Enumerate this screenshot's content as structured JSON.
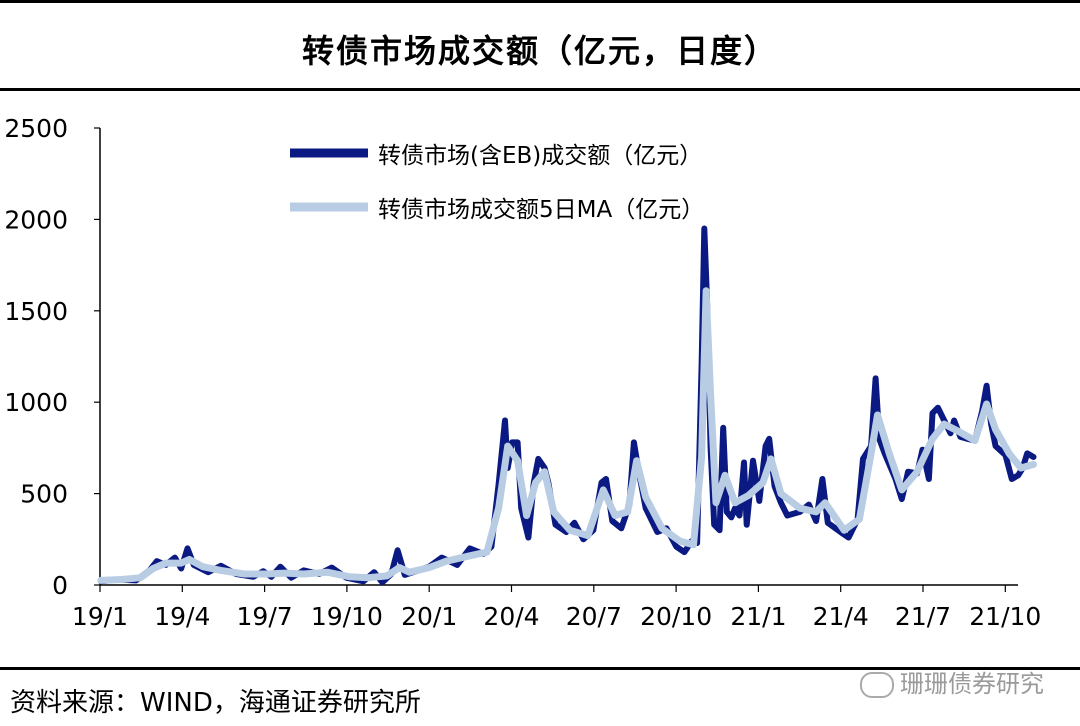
{
  "title": "转债市场成交额（亿元，日度）",
  "source": "资料来源：WIND，海通证券研究所",
  "watermark": "珊珊债券研究",
  "chart_data": {
    "type": "line",
    "title": "转债市场成交额（亿元，日度）",
    "ylim": [
      0,
      2500
    ],
    "yticks": [
      0,
      500,
      1000,
      1500,
      2000,
      2500
    ],
    "xticks": [
      "19/1",
      "19/4",
      "19/7",
      "19/10",
      "20/1",
      "20/4",
      "20/7",
      "20/10",
      "21/1",
      "21/4",
      "21/7",
      "21/10"
    ],
    "xlim": [
      "2019-01-01",
      "2021-11-15"
    ],
    "grid": false,
    "legend_position": "top-center",
    "series": [
      {
        "name": "转债市场(含EB)成交额（亿元）",
        "color": "#0b1a82",
        "points": [
          [
            "2019-01-02",
            20
          ],
          [
            "2019-01-20",
            30
          ],
          [
            "2019-02-10",
            25
          ],
          [
            "2019-02-25",
            80
          ],
          [
            "2019-03-05",
            130
          ],
          [
            "2019-03-15",
            110
          ],
          [
            "2019-03-25",
            150
          ],
          [
            "2019-04-01",
            90
          ],
          [
            "2019-04-08",
            200
          ],
          [
            "2019-04-15",
            110
          ],
          [
            "2019-05-01",
            70
          ],
          [
            "2019-05-15",
            105
          ],
          [
            "2019-06-01",
            60
          ],
          [
            "2019-06-20",
            45
          ],
          [
            "2019-07-01",
            75
          ],
          [
            "2019-07-10",
            45
          ],
          [
            "2019-07-20",
            100
          ],
          [
            "2019-08-01",
            40
          ],
          [
            "2019-08-15",
            80
          ],
          [
            "2019-09-01",
            60
          ],
          [
            "2019-09-15",
            95
          ],
          [
            "2019-10-01",
            40
          ],
          [
            "2019-10-20",
            20
          ],
          [
            "2019-11-01",
            70
          ],
          [
            "2019-11-10",
            15
          ],
          [
            "2019-11-20",
            60
          ],
          [
            "2019-11-27",
            190
          ],
          [
            "2019-12-05",
            55
          ],
          [
            "2019-12-20",
            80
          ],
          [
            "2020-01-01",
            100
          ],
          [
            "2020-01-15",
            150
          ],
          [
            "2020-02-01",
            110
          ],
          [
            "2020-02-15",
            200
          ],
          [
            "2020-03-01",
            170
          ],
          [
            "2020-03-10",
            210
          ],
          [
            "2020-03-18",
            550
          ],
          [
            "2020-03-25",
            900
          ],
          [
            "2020-03-28",
            640
          ],
          [
            "2020-04-02",
            780
          ],
          [
            "2020-04-08",
            780
          ],
          [
            "2020-04-12",
            420
          ],
          [
            "2020-04-20",
            260
          ],
          [
            "2020-04-26",
            560
          ],
          [
            "2020-05-01",
            690
          ],
          [
            "2020-05-08",
            640
          ],
          [
            "2020-05-12",
            560
          ],
          [
            "2020-05-20",
            330
          ],
          [
            "2020-06-01",
            290
          ],
          [
            "2020-06-10",
            340
          ],
          [
            "2020-06-20",
            250
          ],
          [
            "2020-07-01",
            300
          ],
          [
            "2020-07-10",
            560
          ],
          [
            "2020-07-15",
            580
          ],
          [
            "2020-07-22",
            350
          ],
          [
            "2020-08-01",
            310
          ],
          [
            "2020-08-10",
            440
          ],
          [
            "2020-08-15",
            780
          ],
          [
            "2020-08-20",
            630
          ],
          [
            "2020-08-28",
            420
          ],
          [
            "2020-09-10",
            290
          ],
          [
            "2020-09-20",
            310
          ],
          [
            "2020-10-01",
            210
          ],
          [
            "2020-10-10",
            180
          ],
          [
            "2020-10-18",
            240
          ],
          [
            "2020-10-24",
            230
          ],
          [
            "2020-10-29",
            1200
          ],
          [
            "2020-11-01",
            1950
          ],
          [
            "2020-11-04",
            1560
          ],
          [
            "2020-11-08",
            750
          ],
          [
            "2020-11-12",
            330
          ],
          [
            "2020-11-18",
            300
          ],
          [
            "2020-11-22",
            860
          ],
          [
            "2020-11-26",
            400
          ],
          [
            "2020-12-01",
            370
          ],
          [
            "2020-12-05",
            420
          ],
          [
            "2020-12-10",
            380
          ],
          [
            "2020-12-15",
            670
          ],
          [
            "2020-12-18",
            330
          ],
          [
            "2020-12-25",
            680
          ],
          [
            "2021-01-01",
            460
          ],
          [
            "2021-01-08",
            760
          ],
          [
            "2021-01-12",
            800
          ],
          [
            "2021-01-18",
            540
          ],
          [
            "2021-01-25",
            450
          ],
          [
            "2021-02-01",
            380
          ],
          [
            "2021-02-15",
            400
          ],
          [
            "2021-02-25",
            440
          ],
          [
            "2021-03-05",
            350
          ],
          [
            "2021-03-12",
            580
          ],
          [
            "2021-03-18",
            340
          ],
          [
            "2021-04-01",
            290
          ],
          [
            "2021-04-10",
            260
          ],
          [
            "2021-04-20",
            360
          ],
          [
            "2021-04-26",
            690
          ],
          [
            "2021-05-05",
            760
          ],
          [
            "2021-05-10",
            1130
          ],
          [
            "2021-05-14",
            800
          ],
          [
            "2021-05-20",
            720
          ],
          [
            "2021-06-01",
            580
          ],
          [
            "2021-06-08",
            470
          ],
          [
            "2021-06-15",
            620
          ],
          [
            "2021-06-25",
            610
          ],
          [
            "2021-07-01",
            740
          ],
          [
            "2021-07-08",
            580
          ],
          [
            "2021-07-12",
            940
          ],
          [
            "2021-07-18",
            970
          ],
          [
            "2021-07-25",
            900
          ],
          [
            "2021-08-01",
            830
          ],
          [
            "2021-08-05",
            900
          ],
          [
            "2021-08-12",
            810
          ],
          [
            "2021-08-20",
            800
          ],
          [
            "2021-08-28",
            790
          ],
          [
            "2021-09-05",
            950
          ],
          [
            "2021-09-10",
            1090
          ],
          [
            "2021-09-15",
            880
          ],
          [
            "2021-09-20",
            760
          ],
          [
            "2021-10-01",
            710
          ],
          [
            "2021-10-08",
            580
          ],
          [
            "2021-10-15",
            600
          ],
          [
            "2021-10-20",
            640
          ],
          [
            "2021-10-25",
            720
          ],
          [
            "2021-11-01",
            700
          ]
        ]
      },
      {
        "name": "转债市场成交额5日MA（亿元）",
        "color": "#b8cce4",
        "points": [
          [
            "2019-01-02",
            25
          ],
          [
            "2019-01-25",
            30
          ],
          [
            "2019-02-15",
            40
          ],
          [
            "2019-03-01",
            90
          ],
          [
            "2019-03-15",
            120
          ],
          [
            "2019-04-01",
            120
          ],
          [
            "2019-04-10",
            140
          ],
          [
            "2019-04-25",
            100
          ],
          [
            "2019-05-15",
            80
          ],
          [
            "2019-06-10",
            60
          ],
          [
            "2019-07-05",
            60
          ],
          [
            "2019-07-25",
            65
          ],
          [
            "2019-08-15",
            60
          ],
          [
            "2019-09-10",
            70
          ],
          [
            "2019-10-05",
            45
          ],
          [
            "2019-10-25",
            40
          ],
          [
            "2019-11-15",
            50
          ],
          [
            "2019-11-29",
            95
          ],
          [
            "2019-12-10",
            70
          ],
          [
            "2020-01-01",
            95
          ],
          [
            "2020-01-20",
            130
          ],
          [
            "2020-02-15",
            160
          ],
          [
            "2020-03-05",
            180
          ],
          [
            "2020-03-18",
            420
          ],
          [
            "2020-03-28",
            760
          ],
          [
            "2020-04-08",
            680
          ],
          [
            "2020-04-18",
            380
          ],
          [
            "2020-04-28",
            560
          ],
          [
            "2020-05-08",
            620
          ],
          [
            "2020-05-18",
            400
          ],
          [
            "2020-06-05",
            300
          ],
          [
            "2020-06-25",
            270
          ],
          [
            "2020-07-12",
            520
          ],
          [
            "2020-07-25",
            380
          ],
          [
            "2020-08-08",
            400
          ],
          [
            "2020-08-18",
            680
          ],
          [
            "2020-08-28",
            480
          ],
          [
            "2020-09-15",
            310
          ],
          [
            "2020-10-05",
            240
          ],
          [
            "2020-10-20",
            220
          ],
          [
            "2020-10-29",
            700
          ],
          [
            "2020-11-03",
            1610
          ],
          [
            "2020-11-08",
            1040
          ],
          [
            "2020-11-14",
            450
          ],
          [
            "2020-11-24",
            600
          ],
          [
            "2020-12-05",
            450
          ],
          [
            "2020-12-20",
            490
          ],
          [
            "2021-01-05",
            560
          ],
          [
            "2021-01-14",
            690
          ],
          [
            "2021-01-25",
            500
          ],
          [
            "2021-02-15",
            420
          ],
          [
            "2021-03-05",
            400
          ],
          [
            "2021-03-15",
            450
          ],
          [
            "2021-04-05",
            300
          ],
          [
            "2021-04-22",
            360
          ],
          [
            "2021-05-05",
            720
          ],
          [
            "2021-05-12",
            930
          ],
          [
            "2021-05-25",
            720
          ],
          [
            "2021-06-08",
            520
          ],
          [
            "2021-06-25",
            620
          ],
          [
            "2021-07-12",
            800
          ],
          [
            "2021-07-25",
            880
          ],
          [
            "2021-08-10",
            840
          ],
          [
            "2021-08-28",
            790
          ],
          [
            "2021-09-10",
            990
          ],
          [
            "2021-09-20",
            850
          ],
          [
            "2021-10-05",
            720
          ],
          [
            "2021-10-18",
            640
          ],
          [
            "2021-11-01",
            660
          ]
        ]
      }
    ]
  }
}
